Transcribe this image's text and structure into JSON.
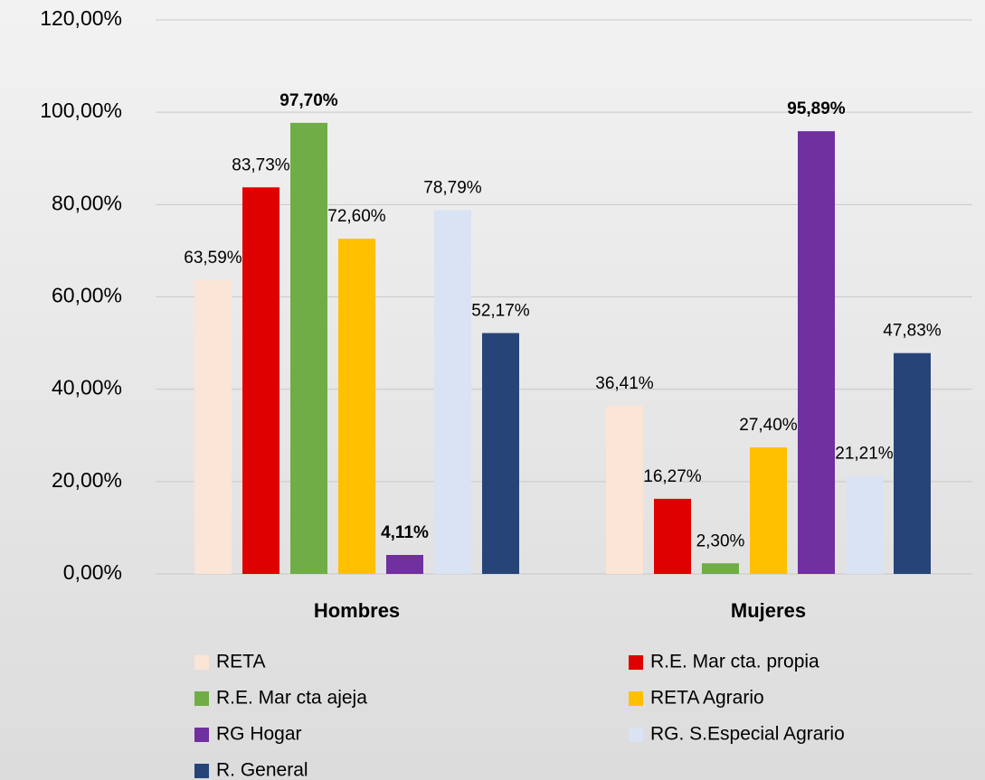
{
  "chart_data": {
    "type": "bar",
    "categories": [
      "Hombres",
      "Mujeres"
    ],
    "series": [
      {
        "name": "RETA",
        "color": "#fbe5d6",
        "values": [
          63.59,
          36.41
        ],
        "value_labels": [
          "63,59%",
          "36,41%"
        ],
        "bold": [
          false,
          false
        ]
      },
      {
        "name": "R.E. Mar cta. propia",
        "color": "#df0000",
        "values": [
          83.73,
          16.27
        ],
        "value_labels": [
          "83,73%",
          "16,27%"
        ],
        "bold": [
          false,
          false
        ]
      },
      {
        "name": "R.E. Mar cta ajeja",
        "color": "#70ad47",
        "values": [
          97.7,
          2.3
        ],
        "value_labels": [
          "97,70%",
          "2,30%"
        ],
        "bold": [
          true,
          false
        ]
      },
      {
        "name": "RETA Agrario",
        "color": "#ffc000",
        "values": [
          72.6,
          27.4
        ],
        "value_labels": [
          "72,60%",
          "27,40%"
        ],
        "bold": [
          false,
          false
        ]
      },
      {
        "name": "RG Hogar",
        "color": "#7030a0",
        "values": [
          4.11,
          95.89
        ],
        "value_labels": [
          "4,11%",
          "95,89%"
        ],
        "bold": [
          true,
          true
        ]
      },
      {
        "name": "RG. S.Especial Agrario",
        "color": "#dae3f3",
        "values": [
          78.79,
          21.21
        ],
        "value_labels": [
          "78,79%",
          "21,21%"
        ],
        "bold": [
          false,
          false
        ]
      },
      {
        "name": "R. General",
        "color": "#264478",
        "values": [
          52.17,
          47.83
        ],
        "value_labels": [
          "52,17%",
          "47,83%"
        ],
        "bold": [
          false,
          false
        ]
      }
    ],
    "ylim": [
      0,
      120
    ],
    "yticks": [
      {
        "value": 0,
        "label": "0,00%"
      },
      {
        "value": 20,
        "label": "20,00%"
      },
      {
        "value": 40,
        "label": "40,00%"
      },
      {
        "value": 60,
        "label": "60,00%"
      },
      {
        "value": 80,
        "label": "80,00%"
      },
      {
        "value": 100,
        "label": "100,00%"
      },
      {
        "value": 120,
        "label": "120,00%"
      }
    ],
    "grid": true
  }
}
